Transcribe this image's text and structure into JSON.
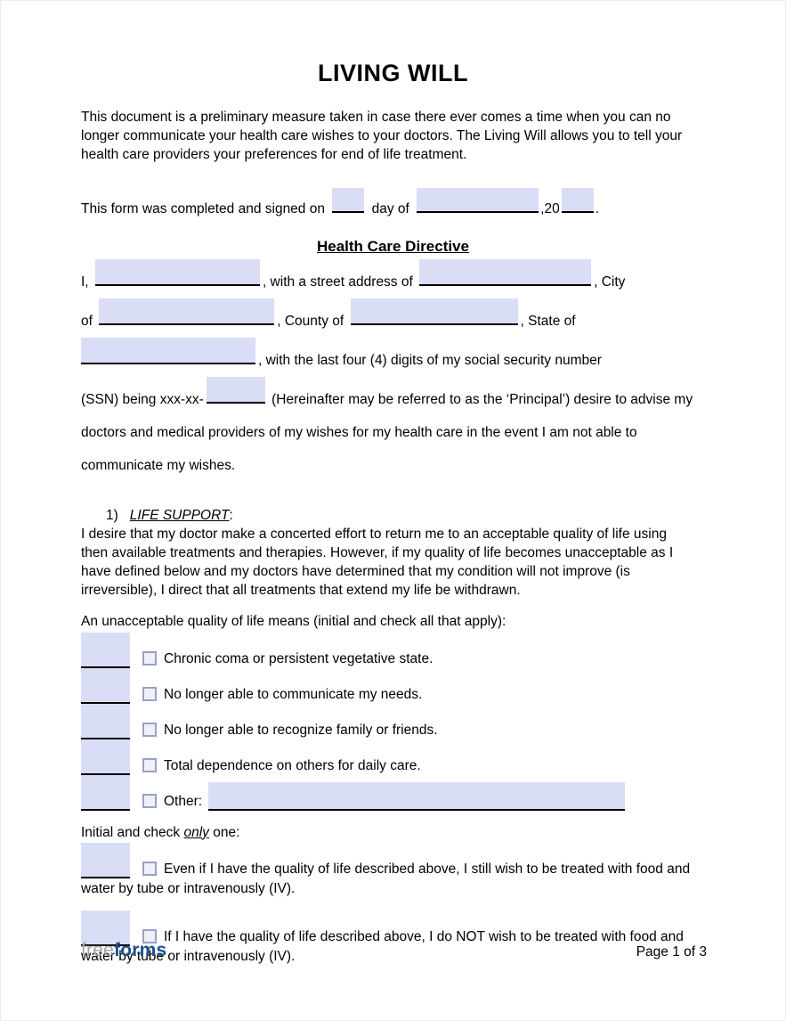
{
  "colors": {
    "field_fill": "#d9ddf6",
    "checkbox_border": "#99a0c9",
    "logo_gray": "#a5a5a5",
    "logo_navy": "#1b4e8f"
  },
  "title": "LIVING WILL",
  "intro": {
    "lines": [
      "This document is a preliminary measure taken in case there ever comes a time when you can no",
      "longer communicate your health care wishes to your doctors. The Living Will allows you to tell your",
      "health care providers your preferences for end of life treatment."
    ]
  },
  "signed_line": {
    "prefix": "This form was completed and signed on",
    "day_of": "day of",
    "comma_20": ",20",
    "period": "."
  },
  "directive": {
    "heading": "Health Care Directive",
    "l1a": "I,",
    "l1b": ", with a street address of",
    "l1c": ", City",
    "l2a": "of",
    "l2b": ", County of",
    "l2c": ", State of",
    "l3": ", with the last four (4) digits of my social security number",
    "l4a": "(SSN) being xxx-xx-",
    "l4b": "(Hereinafter may be referred to as the ‘Principal’) desire to advise my",
    "l5": "doctors and medical providers of my wishes for my health care in the event I am not able to",
    "l6": "communicate my wishes."
  },
  "life_support": {
    "number": "1)",
    "heading": "LIFE SUPPORT",
    "colon": ":",
    "body_lines": [
      "I desire that my doctor make a concerted effort to return me to an acceptable quality of life using",
      "then available treatments and therapies. However, if my quality of life becomes unacceptable as I",
      "have defined below and my doctors have determined that my condition will not improve (is",
      "irreversible), I direct that all treatments that extend my life be withdrawn."
    ],
    "apply_prompt": "An unacceptable quality of life means (initial and check all that apply):",
    "options": [
      {
        "label": "Chronic coma or persistent vegetative state."
      },
      {
        "label": "No longer able to communicate my needs."
      },
      {
        "label": "No longer able to recognize family or friends."
      },
      {
        "label": "Total dependence on others for daily care."
      },
      {
        "label": "Other:"
      }
    ],
    "only_prompt_a": "Initial and check",
    "only_word": "only",
    "only_prompt_b": "one:",
    "exclusive_options": [
      {
        "line1": "Even if I have the quality of life described above, I still wish to be treated with food and",
        "line2": "water by tube or intravenously (IV)."
      },
      {
        "line1": "If I have the quality of life described above, I do NOT wish to be treated with food and",
        "line2": "water by tube or intravenously (IV)."
      }
    ]
  },
  "footer": {
    "logo_free": "free",
    "logo_forms": "forms",
    "page_label": "Page 1 of 3"
  }
}
